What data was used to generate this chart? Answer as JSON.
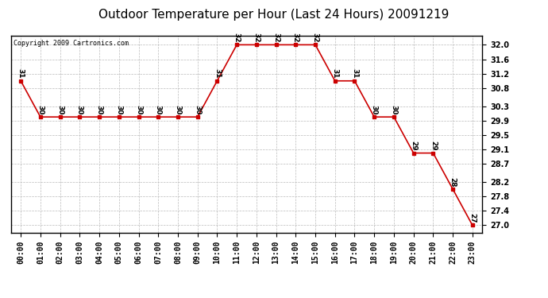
{
  "title": "Outdoor Temperature per Hour (Last 24 Hours) 20091219",
  "copyright": "Copyright 2009 Cartronics.com",
  "hours": [
    "00:00",
    "01:00",
    "02:00",
    "03:00",
    "04:00",
    "05:00",
    "06:00",
    "07:00",
    "08:00",
    "09:00",
    "10:00",
    "11:00",
    "12:00",
    "13:00",
    "14:00",
    "15:00",
    "16:00",
    "17:00",
    "18:00",
    "19:00",
    "20:00",
    "21:00",
    "22:00",
    "23:00"
  ],
  "temperatures": [
    31,
    30,
    30,
    30,
    30,
    30,
    30,
    30,
    30,
    30,
    31,
    32,
    32,
    32,
    32,
    32,
    31,
    31,
    30,
    30,
    29,
    29,
    28,
    27
  ],
  "ylim_min": 26.8,
  "ylim_max": 32.25,
  "yticks": [
    27.0,
    27.4,
    27.8,
    28.2,
    28.7,
    29.1,
    29.5,
    29.9,
    30.3,
    30.8,
    31.2,
    31.6,
    32.0
  ],
  "line_color": "#cc0000",
  "marker_color": "#cc0000",
  "bg_color": "#ffffff",
  "plot_bg_color": "#ffffff",
  "grid_color": "#bbbbbb",
  "title_fontsize": 11,
  "tick_fontsize": 7,
  "label_fontsize": 6.5,
  "copyright_fontsize": 6
}
